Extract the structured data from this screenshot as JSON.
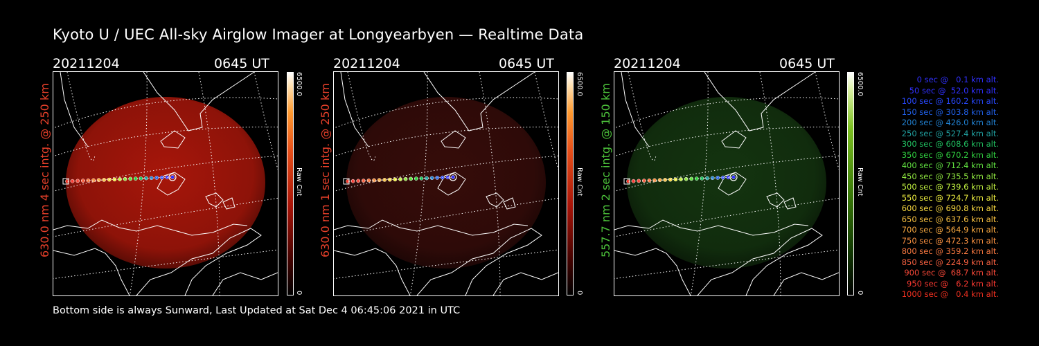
{
  "title": "Kyoto U / UEC All-sky Airglow Imager at Longyearbyen — Realtime Data",
  "panels": [
    {
      "date": "20211204",
      "ut": "0645 UT",
      "side_label": "630.0 nm 4 sec intg. @ 250 km",
      "label_color": "#e8402a",
      "colorbar_max": "6500.0",
      "colorbar_min": "0",
      "colorbar_unit": "Raw Cnt",
      "colormap": "red",
      "glow_color": "#c41a0c",
      "glow_intensity": 0.85
    },
    {
      "date": "20211204",
      "ut": "0645 UT",
      "side_label": "630.0 nm 1 sec intg. @ 250 km",
      "label_color": "#e8402a",
      "colorbar_max": "6500.0",
      "colorbar_min": "0",
      "colorbar_unit": "Raw Cnt",
      "colormap": "red",
      "glow_color": "#5a1410",
      "glow_intensity": 0.6
    },
    {
      "date": "20211204",
      "ut": "0645 UT",
      "side_label": "557.7 nm 2 sec intg. @ 150 km",
      "label_color": "#4cc23a",
      "colorbar_max": "6500.0",
      "colorbar_min": "0",
      "colorbar_unit": "Raw Cnt",
      "colormap": "green",
      "glow_color": "#1c4a16",
      "glow_intensity": 0.7
    }
  ],
  "legend": [
    {
      "text": "0 sec @   0.1 km alt.",
      "color": "#3030ff"
    },
    {
      "text": "50 sec @  52.0 km alt.",
      "color": "#3030ff"
    },
    {
      "text": "100 sec @ 160.2 km alt.",
      "color": "#2848ff"
    },
    {
      "text": "150 sec @ 303.8 km alt.",
      "color": "#2060e8"
    },
    {
      "text": "200 sec @ 426.0 km alt.",
      "color": "#2080d0"
    },
    {
      "text": "250 sec @ 527.4 km alt.",
      "color": "#20a0a0"
    },
    {
      "text": "300 sec @ 608.6 km alt.",
      "color": "#20c060"
    },
    {
      "text": "350 sec @ 670.2 km alt.",
      "color": "#30d040"
    },
    {
      "text": "400 sec @ 712.4 km alt.",
      "color": "#60e040"
    },
    {
      "text": "450 sec @ 735.5 km alt.",
      "color": "#90e840"
    },
    {
      "text": "500 sec @ 739.6 km alt.",
      "color": "#c0f040"
    },
    {
      "text": "550 sec @ 724.7 km alt.",
      "color": "#f0f040"
    },
    {
      "text": "600 sec @ 690.8 km alt.",
      "color": "#f8d840"
    },
    {
      "text": "650 sec @ 637.6 km alt.",
      "color": "#f8c040"
    },
    {
      "text": "700 sec @ 564.9 km alt.",
      "color": "#f8a840"
    },
    {
      "text": "750 sec @ 472.3 km alt.",
      "color": "#f89040"
    },
    {
      "text": "800 sec @ 359.2 km alt.",
      "color": "#f87840"
    },
    {
      "text": "850 sec @ 224.9 km alt.",
      "color": "#f86040"
    },
    {
      "text": "900 sec @  68.7 km alt.",
      "color": "#f84838"
    },
    {
      "text": "950 sec @   6.2 km alt.",
      "color": "#f83830"
    },
    {
      "text": "1000 sec @   0.4 km alt.",
      "color": "#f03020"
    }
  ],
  "footer": "Bottom side is always Sunward, Last Updated at Sat Dec  4 06:45:06 2021 in UTC"
}
